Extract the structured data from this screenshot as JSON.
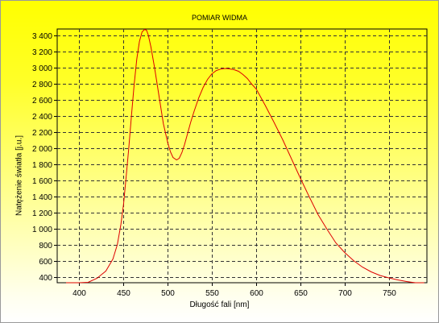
{
  "chart_data": {
    "type": "line",
    "title": "POMIAR WIDMA",
    "xlabel": "Długość fali [nm]",
    "ylabel": "Natężenie światła [j.u.]",
    "xlim": [
      375,
      793
    ],
    "ylim": [
      325,
      3475
    ],
    "xticks": [
      400,
      450,
      500,
      550,
      600,
      650,
      700,
      750
    ],
    "yticks": [
      400,
      600,
      800,
      1000,
      1200,
      1400,
      1600,
      1800,
      2000,
      2200,
      2400,
      2600,
      2800,
      3000,
      3200,
      3400
    ],
    "xtick_labels": [
      "400",
      "450",
      "500",
      "550",
      "600",
      "650",
      "700",
      "750"
    ],
    "ytick_labels": [
      "400",
      "600",
      "800",
      "1 000",
      "1 200",
      "1 400",
      "1 600",
      "1 800",
      "2 000",
      "2 200",
      "2 400",
      "2 600",
      "2 800",
      "3 000",
      "3 200",
      "3 400"
    ],
    "grid": true,
    "line_color": "#dd0000",
    "series": [
      {
        "x": [
          385,
          400,
          410,
          420,
          430,
          438,
          443,
          447,
          450,
          453,
          456,
          459,
          462,
          465,
          468,
          471,
          474,
          476,
          478,
          481,
          485,
          490,
          495,
          500,
          503,
          506,
          510,
          513,
          516,
          519,
          522,
          526,
          530,
          535,
          540,
          545,
          550,
          555,
          560,
          565,
          570,
          575,
          580,
          585,
          590,
          595,
          600,
          605,
          610,
          620,
          630,
          640,
          650,
          660,
          670,
          680,
          690,
          700,
          710,
          720,
          730,
          740,
          750,
          760,
          770,
          780,
          790
        ],
        "y": [
          305,
          310,
          330,
          380,
          470,
          620,
          800,
          1050,
          1300,
          1650,
          2000,
          2400,
          2780,
          3100,
          3320,
          3440,
          3470,
          3460,
          3400,
          3250,
          3000,
          2650,
          2300,
          2060,
          1950,
          1880,
          1850,
          1870,
          1940,
          2040,
          2160,
          2320,
          2460,
          2620,
          2750,
          2850,
          2920,
          2960,
          2978,
          2985,
          2980,
          2970,
          2950,
          2910,
          2860,
          2790,
          2730,
          2630,
          2530,
          2320,
          2100,
          1860,
          1620,
          1390,
          1170,
          990,
          820,
          700,
          600,
          520,
          460,
          415,
          385,
          360,
          340,
          325,
          315
        ]
      }
    ]
  }
}
